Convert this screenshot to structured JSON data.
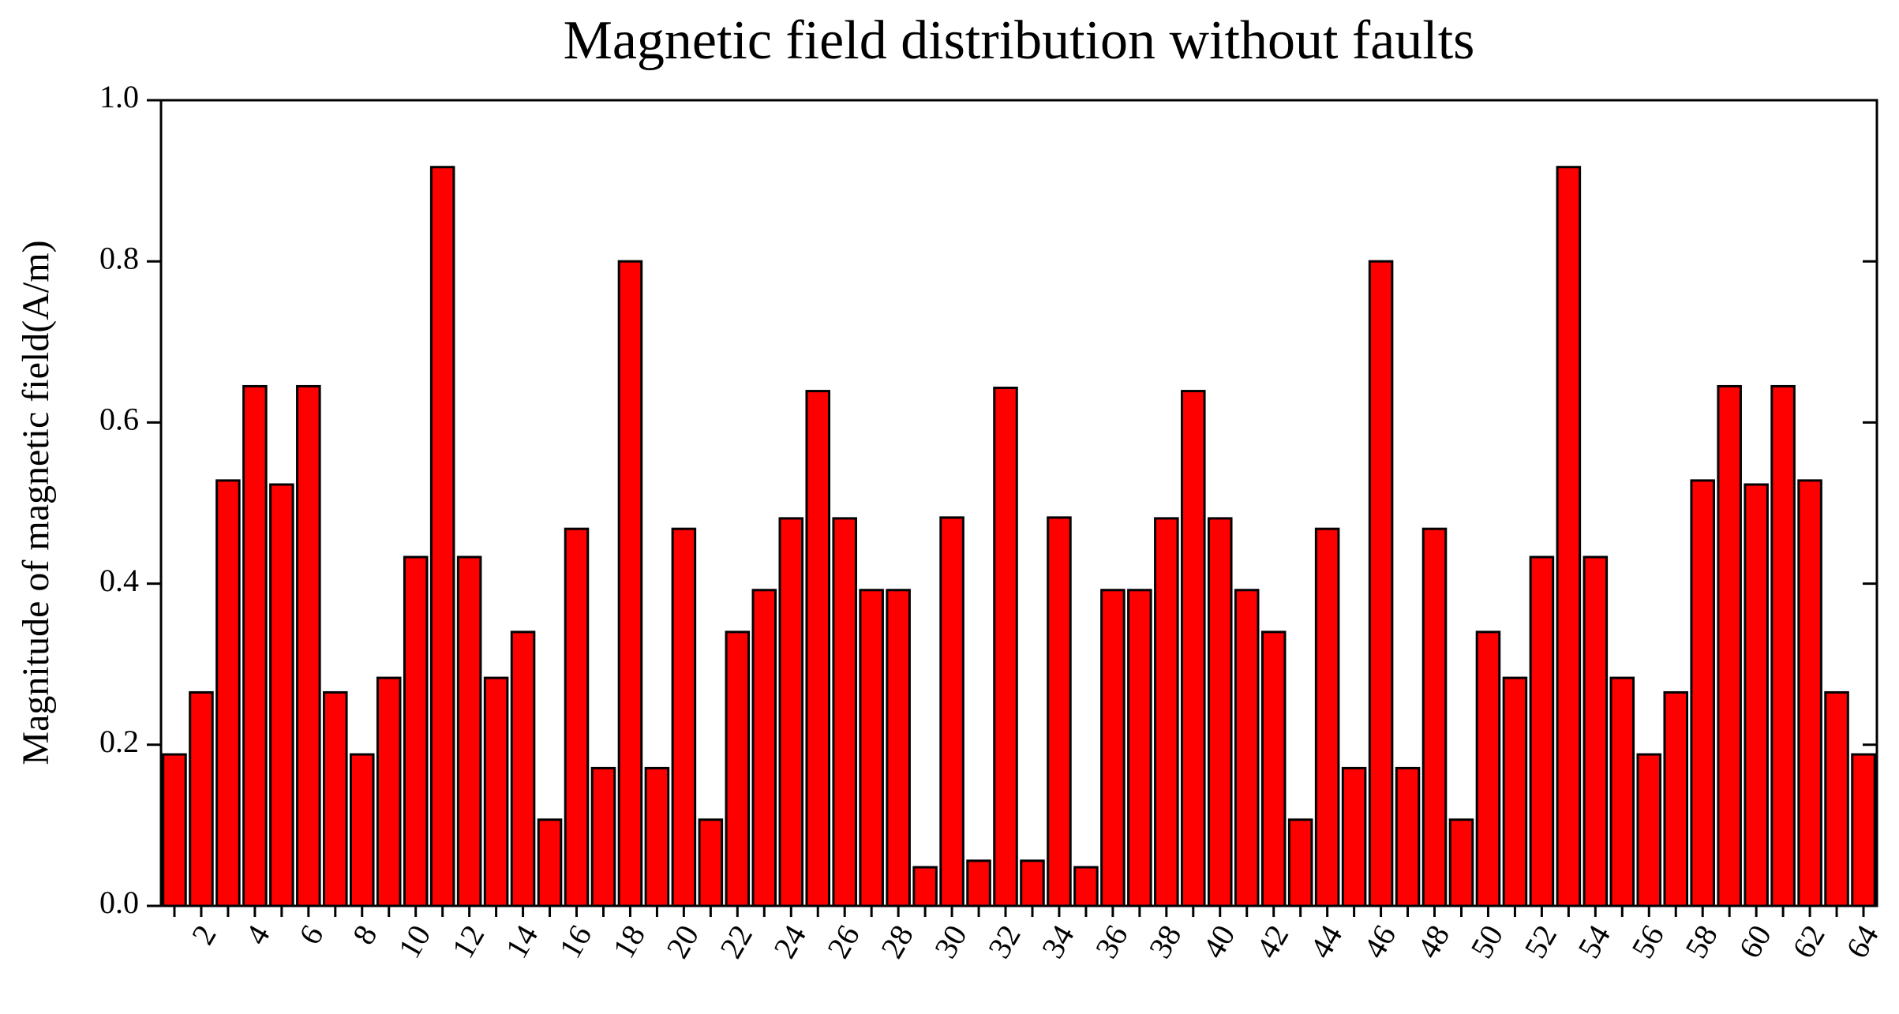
{
  "chart_data": {
    "type": "bar",
    "title": "Magnetic field distribution without faults",
    "y_label": "Magnitude of magnetic field(A/m)",
    "categories": [
      null,
      "2",
      null,
      "4",
      null,
      "6",
      null,
      "8",
      null,
      "10",
      null,
      "12",
      null,
      "14",
      null,
      "16",
      null,
      "18",
      null,
      "20",
      null,
      "22",
      null,
      "24",
      null,
      "26",
      null,
      "28",
      null,
      "30",
      null,
      "32",
      null,
      "34",
      null,
      "36",
      null,
      "38",
      null,
      "40",
      null,
      "42",
      null,
      "44",
      null,
      "46",
      null,
      "48",
      null,
      "50",
      null,
      "52",
      null,
      "54",
      null,
      "56",
      null,
      "58",
      null,
      "60",
      null,
      "62",
      null,
      "64"
    ],
    "values": [
      0.188,
      0.265,
      0.528,
      0.645,
      0.523,
      0.645,
      0.265,
      0.188,
      0.283,
      0.433,
      0.917,
      0.433,
      0.283,
      0.34,
      0.107,
      0.468,
      0.171,
      0.8,
      0.171,
      0.468,
      0.107,
      0.34,
      0.392,
      0.481,
      0.639,
      0.481,
      0.392,
      0.392,
      0.048,
      0.482,
      0.056,
      0.643,
      0.056,
      0.482,
      0.048,
      0.392,
      0.392,
      0.481,
      0.639,
      0.481,
      0.392,
      0.34,
      0.107,
      0.468,
      0.171,
      0.8,
      0.171,
      0.468,
      0.107,
      0.34,
      0.283,
      0.433,
      0.917,
      0.433,
      0.283,
      0.188,
      0.265,
      0.528,
      0.645,
      0.523,
      0.645,
      0.528,
      0.265,
      0.188
    ],
    "color": "#ff0000",
    "ylim": [
      0,
      1
    ],
    "yticks": [
      {
        "value": 0,
        "label": "0.0"
      },
      0.2,
      0.4,
      0.6,
      0.8,
      {
        "value": 1,
        "label": "1.0"
      }
    ]
  }
}
